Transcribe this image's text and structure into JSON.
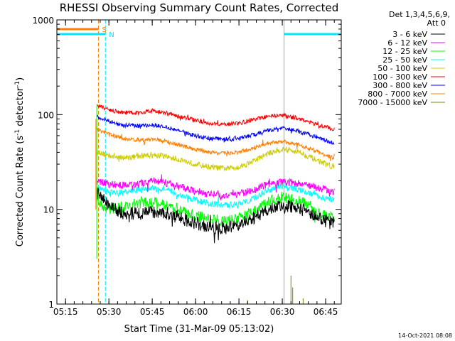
{
  "chart_data": {
    "type": "line",
    "title": "RHESSI Observing Summary Count Rates, Corrected",
    "xlabel": "Start Time (31-Mar-09 05:13:02)",
    "ylabel_main": "Corrected Count Rate (s",
    "ylabel_sup1": "-1",
    "ylabel_mid": " detector",
    "ylabel_sup2": "-1",
    "ylabel_end": ")",
    "x_range_min": [
      5.2,
      6.84
    ],
    "ylim": [
      1,
      1000
    ],
    "y_scale": "log",
    "x_ticks": [
      {
        "label": "05:15",
        "t": 5.25
      },
      {
        "label": "05:30",
        "t": 5.5
      },
      {
        "label": "05:45",
        "t": 5.75
      },
      {
        "label": "06:00",
        "t": 6.0
      },
      {
        "label": "06:15",
        "t": 6.25
      },
      {
        "label": "06:30",
        "t": 6.5
      },
      {
        "label": "06:45",
        "t": 6.75
      }
    ],
    "y_ticks": [
      {
        "label": "1",
        "v": 1
      },
      {
        "label": "10",
        "v": 10
      },
      {
        "label": "100",
        "v": 100
      },
      {
        "label": "1000",
        "v": 1000
      }
    ],
    "legend_header": [
      "Det 1,3,4,5,6,9,",
      "Att 0"
    ],
    "legend_placement": "right",
    "series": [
      {
        "name": "3 - 6 keV",
        "color": "#000000",
        "t": [
          5.43,
          5.5,
          5.58,
          5.67,
          5.75,
          5.83,
          5.92,
          6.0,
          6.08,
          6.17,
          6.25,
          6.33,
          6.42,
          6.5,
          6.58,
          6.67,
          6.75,
          6.8
        ],
        "v": [
          15,
          11,
          9.2,
          9,
          9.5,
          9.2,
          8,
          7.2,
          6.5,
          6.3,
          6.8,
          8,
          10,
          11,
          10.5,
          9,
          7.5,
          7
        ]
      },
      {
        "name": "6 - 12 keV",
        "color": "#ff00ff",
        "t": [
          5.43,
          5.5,
          5.58,
          5.67,
          5.75,
          5.83,
          5.92,
          6.0,
          6.08,
          6.17,
          6.25,
          6.33,
          6.42,
          6.5,
          6.58,
          6.67,
          6.75,
          6.8
        ],
        "v": [
          20,
          18.5,
          18,
          18.5,
          20,
          19,
          17,
          15.5,
          14.5,
          14,
          14.5,
          16,
          18.5,
          19.5,
          19,
          17.5,
          16,
          15.5
        ]
      },
      {
        "name": "12 - 25 keV",
        "color": "#00ff00",
        "t": [
          5.43,
          5.5,
          5.58,
          5.67,
          5.75,
          5.83,
          5.92,
          6.0,
          6.08,
          6.17,
          6.25,
          6.33,
          6.42,
          6.5,
          6.58,
          6.67,
          6.75,
          6.8
        ],
        "v": [
          12,
          10,
          10.5,
          11.5,
          12,
          11,
          9.5,
          8.5,
          8,
          7.5,
          8,
          9.5,
          12,
          13.5,
          12.5,
          10.5,
          8.5,
          8
        ]
      },
      {
        "name": "25 - 50 keV",
        "color": "#00ffff",
        "t": [
          5.43,
          5.5,
          5.58,
          5.67,
          5.75,
          5.83,
          5.92,
          6.0,
          6.08,
          6.17,
          6.25,
          6.33,
          6.42,
          6.5,
          6.58,
          6.67,
          6.75,
          6.8
        ],
        "v": [
          17,
          15,
          15,
          16,
          16.5,
          16,
          14,
          12.5,
          11.5,
          11,
          11.5,
          13,
          16,
          17.5,
          16.5,
          14.5,
          13,
          12.5
        ]
      },
      {
        "name": "50 - 100 keV",
        "color": "#cccc00",
        "t": [
          5.43,
          5.5,
          5.58,
          5.67,
          5.75,
          5.83,
          5.92,
          6.0,
          6.08,
          6.17,
          6.25,
          6.33,
          6.42,
          6.5,
          6.58,
          6.67,
          6.75,
          6.8
        ],
        "v": [
          40,
          37,
          35,
          36,
          38,
          36,
          33,
          30,
          28,
          27,
          28,
          32,
          39,
          43,
          41,
          35,
          30,
          28
        ]
      },
      {
        "name": "100 - 300 keV",
        "color": "#ff0000",
        "t": [
          5.43,
          5.5,
          5.58,
          5.67,
          5.75,
          5.83,
          5.92,
          6.0,
          6.08,
          6.17,
          6.25,
          6.33,
          6.42,
          6.5,
          6.58,
          6.67,
          6.75,
          6.8
        ],
        "v": [
          125,
          112,
          105,
          105,
          110,
          104,
          95,
          87,
          81,
          79,
          81,
          88,
          96,
          98,
          92,
          82,
          74,
          70
        ]
      },
      {
        "name": "300 - 800 keV",
        "color": "#0000ff",
        "t": [
          5.43,
          5.5,
          5.58,
          5.67,
          5.75,
          5.83,
          5.92,
          6.0,
          6.08,
          6.17,
          6.25,
          6.33,
          6.42,
          6.5,
          6.58,
          6.67,
          6.75,
          6.8
        ],
        "v": [
          95,
          85,
          78,
          76,
          78,
          74,
          66,
          60,
          56,
          55,
          56,
          61,
          68,
          72,
          68,
          60,
          53,
          50
        ]
      },
      {
        "name": "800 - 7000 keV",
        "color": "#ff8000",
        "t": [
          5.43,
          5.5,
          5.58,
          5.67,
          5.75,
          5.83,
          5.92,
          6.0,
          6.08,
          6.17,
          6.25,
          6.33,
          6.42,
          6.5,
          6.58,
          6.67,
          6.75,
          6.8
        ],
        "v": [
          70,
          62,
          56,
          54,
          55,
          52,
          47,
          43,
          40,
          39,
          40,
          44,
          50,
          52,
          49,
          43,
          37,
          35
        ]
      },
      {
        "name": "7000 - 15000 keV",
        "color": "#808000",
        "t": [],
        "v": []
      }
    ],
    "flags": [
      {
        "label": "S",
        "color": "#ff8000",
        "start": 5.2,
        "end": 5.44
      },
      {
        "label": "N",
        "color": "#00e5ff",
        "start": 5.2,
        "end": 5.48
      },
      {
        "label": "",
        "color": "#00e5ff",
        "start": 6.51,
        "end": 6.84
      }
    ],
    "vlines": [
      {
        "t": 5.2,
        "color": "#00e5ff",
        "style": "solid"
      },
      {
        "t": 5.44,
        "color": "#ff8000",
        "style": "dashed"
      },
      {
        "t": 5.48,
        "color": "#00e5ff",
        "style": "dashed"
      },
      {
        "t": 6.51,
        "color": "#00e5ff",
        "style": "solid"
      },
      {
        "t": 6.84,
        "color": "#00e5ff",
        "style": "dashed"
      }
    ]
  },
  "footer": {
    "timestamp": "14-Oct-2021 08:08"
  }
}
